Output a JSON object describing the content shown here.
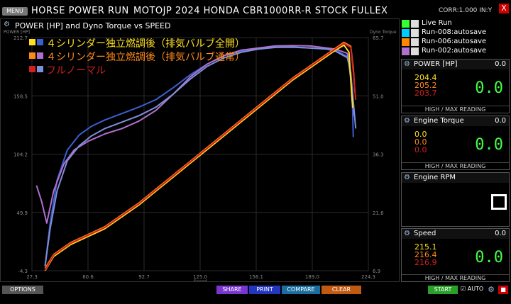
{
  "header": {
    "menu_label": "MENU",
    "app_title": "HORSE POWER RUN",
    "run_title": "MOTOJP 2024 HONDA CBR1000RR-R STOCK FULLEX",
    "corr": "CORR:1.000 IN:Y",
    "close_label": "X"
  },
  "chart_panel": {
    "title": "POWER [HP] and Dyno Torque vs SPEED"
  },
  "chart_data": {
    "type": "line",
    "title": "POWER [HP] and Dyno Torque vs SPEED",
    "xlabel": "Speed",
    "ylabel_left": "POWER [HP]",
    "ylabel_right": "Dyno Torque",
    "x_ticks": [
      "27.3",
      "60.6",
      "92.7",
      "125.0",
      "156.1",
      "189.0",
      "224.3"
    ],
    "y_left_ticks": [
      "212.7",
      "158.5",
      "104.2",
      "49.9",
      "-4.3"
    ],
    "y_right_ticks": [
      "65.7",
      "51.0",
      "36.3",
      "21.6",
      "6.9"
    ],
    "xlim": [
      27.3,
      224.3
    ],
    "ylim_left": [
      -4.3,
      212.7
    ],
    "ylim_right": [
      6.9,
      65.7
    ],
    "legend": [
      {
        "label": "４シリンダー独立燃調後（排気バルブ全開）",
        "color": "#ffe020",
        "color2": "#3a5fd0"
      },
      {
        "label": "４シリンダー独立燃調後（排気バルブ通常）",
        "color": "#ff8a1a",
        "color2": "#b070d0"
      },
      {
        "label": "フルノーマル",
        "color": "#d02020",
        "color2": "#7f8fd8"
      }
    ],
    "series": [
      {
        "name": "４シリンダー独立燃調後（排気バルブ全開） POWER",
        "color": "#3a5fd0",
        "x": [
          35,
          38,
          42,
          48,
          55,
          62,
          70,
          80,
          90,
          100,
          110,
          120,
          130,
          140,
          150,
          160,
          170,
          180,
          190,
          200,
          205,
          212,
          214,
          215,
          215.5
        ],
        "y": [
          0,
          40,
          80,
          108,
          122,
          130,
          136,
          142,
          148,
          155,
          166,
          178,
          188,
          196,
          200,
          203,
          204.4,
          204,
          203,
          202,
          201,
          195,
          180,
          150,
          120
        ]
      },
      {
        "name": "４シリンダー独立燃調後（排気バルブ通常） POWER",
        "color": "#b070d0",
        "x": [
          30,
          33,
          36,
          40,
          46,
          52,
          60,
          70,
          80,
          90,
          100,
          110,
          120,
          130,
          140,
          150,
          160,
          170,
          180,
          190,
          200,
          205,
          212,
          214,
          216
        ],
        "y": [
          75,
          60,
          40,
          70,
          95,
          108,
          116,
          123,
          128,
          135,
          145,
          160,
          176,
          188,
          196,
          201,
          203,
          205,
          205.2,
          205,
          203,
          202,
          198,
          175,
          140
        ]
      },
      {
        "name": "フルノーマル POWER",
        "color": "#7f8fd8",
        "x": [
          35,
          38,
          42,
          48,
          55,
          62,
          70,
          80,
          90,
          100,
          110,
          120,
          130,
          140,
          150,
          160,
          170,
          180,
          190,
          200,
          205,
          212,
          214,
          216.9
        ],
        "y": [
          0,
          35,
          70,
          98,
          112,
          121,
          128,
          134,
          140,
          148,
          160,
          174,
          186,
          194,
          199,
          202,
          203.5,
          203.7,
          203,
          202,
          200,
          194,
          180,
          128
        ]
      },
      {
        "name": "４シリンダー独立燃調後（排気バルブ全開） TORQUE",
        "color": "#ffe020",
        "x": [
          35,
          40,
          50,
          60,
          70,
          80,
          90,
          100,
          110,
          120,
          130,
          140,
          150,
          160,
          170,
          180,
          190,
          200,
          205,
          210,
          213,
          214,
          215.1
        ],
        "y": [
          6.9,
          10.5,
          13.5,
          15.5,
          17.5,
          20.5,
          23.5,
          27.0,
          30.5,
          34.0,
          37.5,
          41.0,
          44.5,
          48.0,
          51.5,
          55.0,
          58.0,
          61.0,
          62.5,
          63.8,
          62,
          55,
          48
        ]
      },
      {
        "name": "４シリンダー独立燃調後（排気バルブ通常） TORQUE",
        "color": "#ff8a1a",
        "x": [
          35,
          40,
          50,
          60,
          70,
          80,
          90,
          100,
          110,
          120,
          130,
          140,
          150,
          160,
          170,
          180,
          190,
          200,
          205,
          210,
          214,
          215.5,
          216.4
        ],
        "y": [
          7.5,
          11.0,
          14.0,
          16.0,
          18.0,
          21.0,
          24.0,
          27.5,
          31.0,
          34.5,
          38.0,
          41.5,
          45.0,
          48.5,
          52.0,
          55.5,
          58.5,
          61.5,
          63.0,
          64.5,
          63.5,
          58,
          52
        ]
      },
      {
        "name": "フルノーマル TORQUE",
        "color": "#d02020",
        "x": [
          35,
          40,
          50,
          60,
          70,
          80,
          90,
          100,
          110,
          120,
          130,
          140,
          150,
          160,
          170,
          180,
          190,
          200,
          205,
          210,
          214,
          215.5,
          216.9
        ],
        "y": [
          7.0,
          10.8,
          13.8,
          15.8,
          17.8,
          20.8,
          23.8,
          27.3,
          30.8,
          34.3,
          37.8,
          41.3,
          44.8,
          48.3,
          51.8,
          55.3,
          58.3,
          61.3,
          62.8,
          64.2,
          63.2,
          57,
          50
        ]
      }
    ]
  },
  "runs": [
    {
      "name": "Live Run",
      "color": "#3f3"
    },
    {
      "name": "Run-008:autosave",
      "color": "#0cf"
    },
    {
      "name": "Run-006:autosave",
      "color": "#f80"
    },
    {
      "name": "Run-002:autosave",
      "color": "#b070d0"
    }
  ],
  "gauges": {
    "power": {
      "title": "POWER [HP]",
      "live": "0.0",
      "v1": "204.4",
      "v2": "205.2",
      "v3": "203.7",
      "big": "0.0",
      "foot": "HIGH / MAX READING",
      "c1": "#ffe020",
      "c2": "#ff8a1a",
      "c3": "#d02020"
    },
    "torque": {
      "title": "Engine Torque",
      "live": "0.0",
      "v1": "0.0",
      "v2": "0.0",
      "v3": "0.0",
      "big": "0.0",
      "foot": "HIGH / MAX READING",
      "c1": "#ffe020",
      "c2": "#ff8a1a",
      "c3": "#d02020"
    },
    "rpm": {
      "title": "Engine RPM"
    },
    "speed": {
      "title": "Speed",
      "live": "0.0",
      "v1": "215.1",
      "v2": "216.4",
      "v3": "216.9",
      "big": "0.0",
      "foot": "HIGH / MAX READING",
      "c1": "#ffe020",
      "c2": "#ff8a1a",
      "c3": "#d02020"
    }
  },
  "footer": {
    "options": "OPTIONS",
    "share": "SHARE",
    "print": "PRINT",
    "compare": "COMPARE",
    "clear": "CLEAR",
    "start": "START",
    "auto": "AUTO"
  },
  "colors": {
    "share": "#7a35d0",
    "print": "#2436c0",
    "compare": "#1a6fa0",
    "clear": "#c05a10",
    "start": "#2aa02a"
  }
}
